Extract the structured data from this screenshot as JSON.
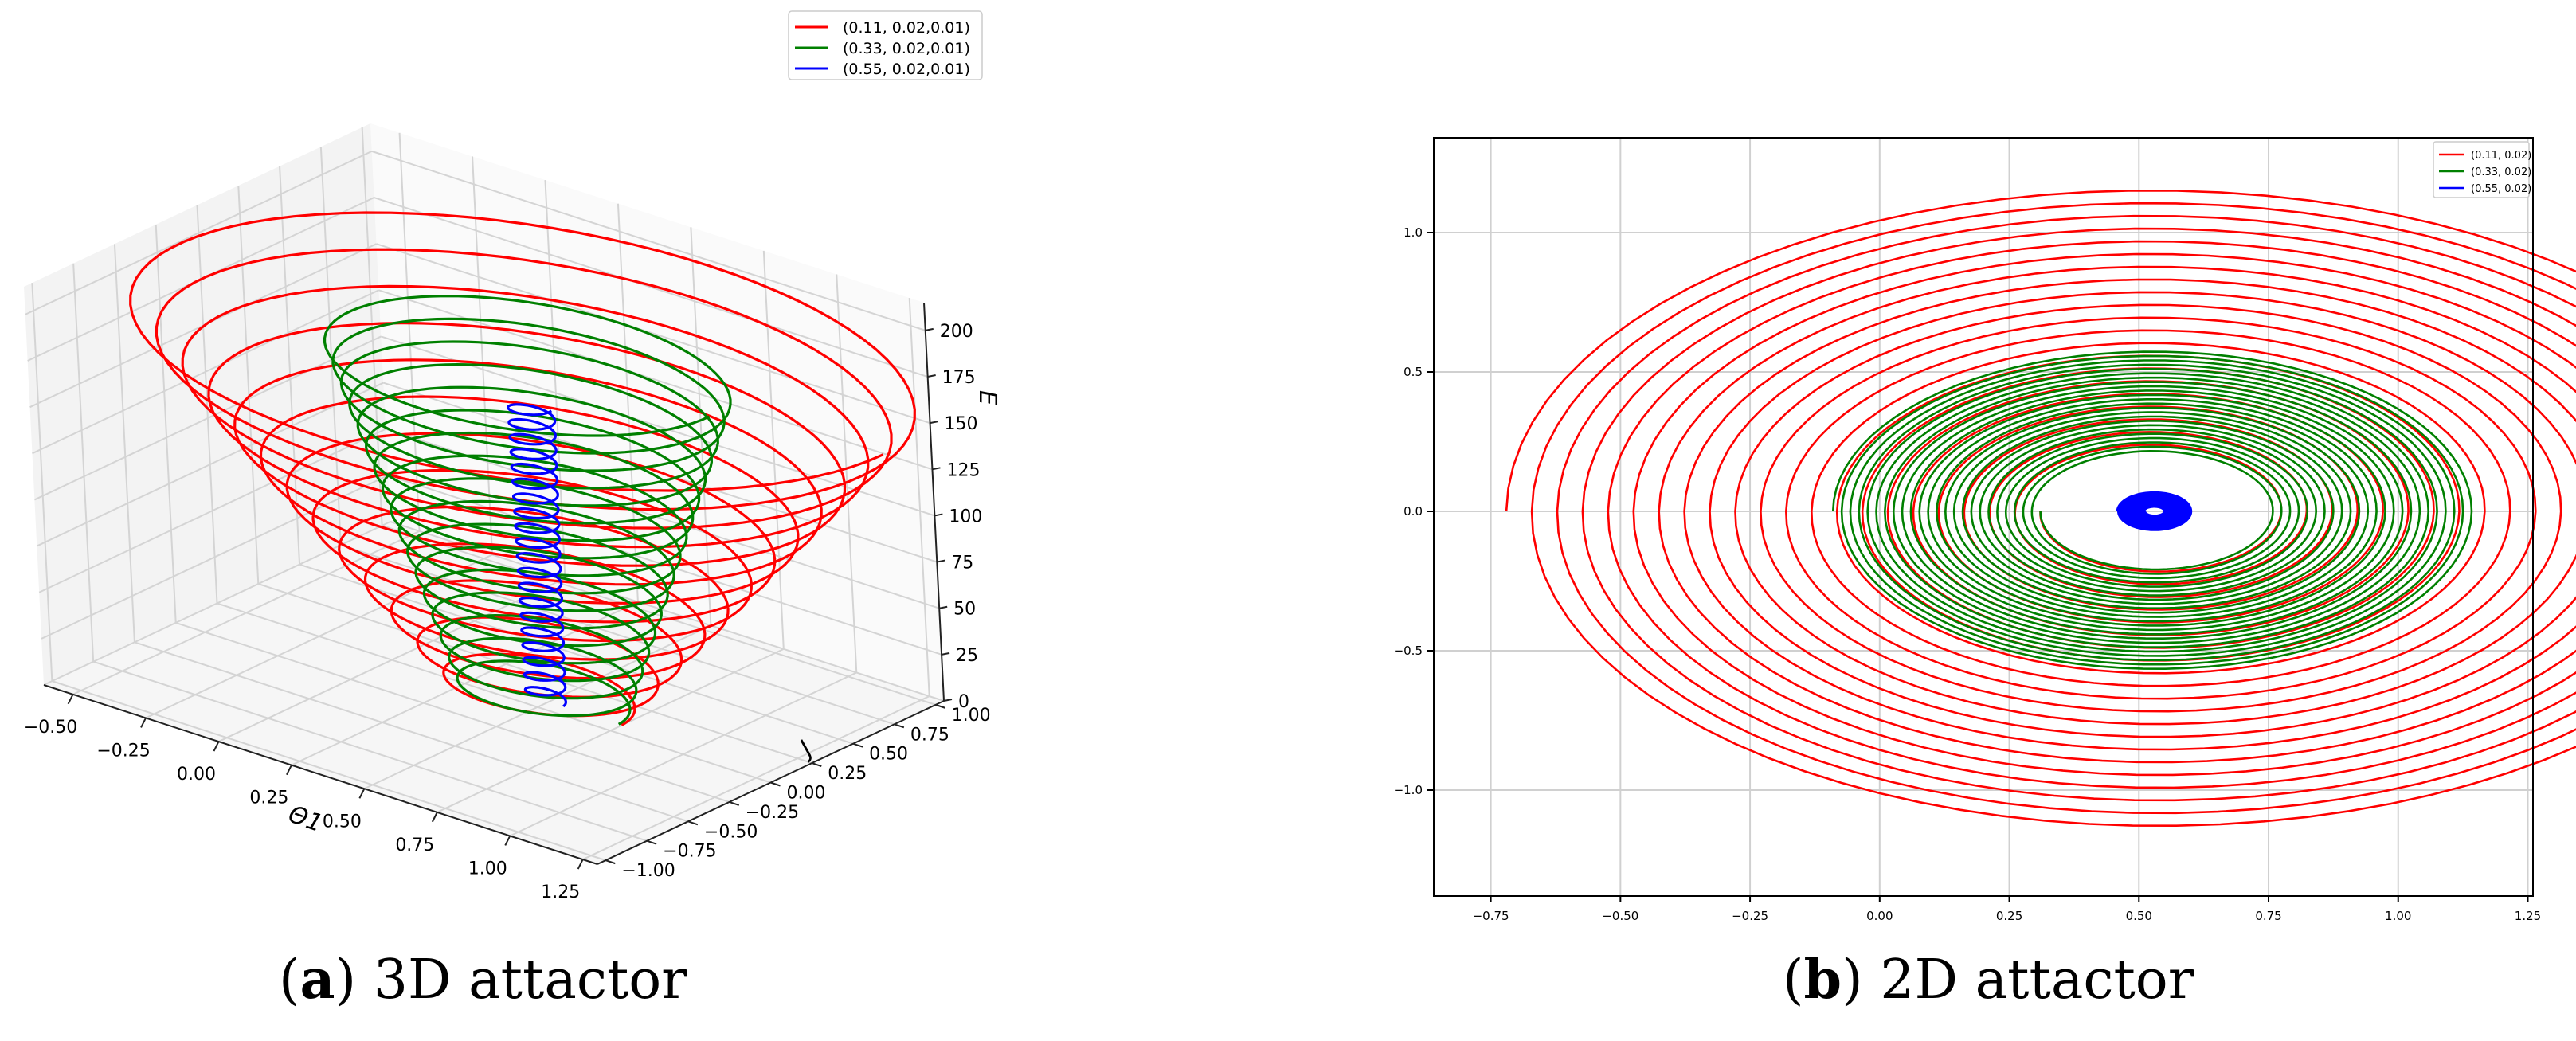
{
  "captions": {
    "a": {
      "letter": "a",
      "text": " 3D attactor"
    },
    "b": {
      "letter": "b",
      "text": " 2D attactor"
    }
  },
  "chart_data": [
    {
      "type": "line",
      "projection": "3d",
      "title": "",
      "xlabel": "Θ1",
      "ylabel": "J",
      "zlabel": "E",
      "x_ticks": [
        "−0.50",
        "−0.25",
        "0.00",
        "0.25",
        "0.50",
        "0.75",
        "1.00",
        "1.25"
      ],
      "y_ticks": [
        "−1.00",
        "−0.75",
        "−0.50",
        "−0.25",
        "0.00",
        "0.25",
        "0.50",
        "0.75",
        "1.00"
      ],
      "z_ticks": [
        "0",
        "25",
        "50",
        "75",
        "100",
        "125",
        "150",
        "175",
        "200"
      ],
      "xlim": [
        -0.6,
        1.3
      ],
      "ylim": [
        -1.05,
        1.05
      ],
      "zlim": [
        0,
        215
      ],
      "grid": true,
      "legend_position": "top-right",
      "series": [
        {
          "name": "(0.11, 0.02,0.01)",
          "color": "#ff0000",
          "center": [
            0.53,
            0.0
          ],
          "r_start": 0.26,
          "r_end": 1.22,
          "z_end": 200,
          "turns": 13
        },
        {
          "name": "(0.33, 0.02,0.01)",
          "color": "#008000",
          "center": [
            0.53,
            0.0
          ],
          "r_start": 0.25,
          "r_end": 0.62,
          "z_end": 190,
          "turns": 17
        },
        {
          "name": "(0.55, 0.02,0.01)",
          "color": "#0000ff",
          "center": [
            0.53,
            0.0
          ],
          "r_start": 0.06,
          "r_end": 0.07,
          "z_end": 165,
          "turns": 20
        }
      ]
    },
    {
      "type": "line",
      "title": "",
      "xlabel": "",
      "ylabel": "",
      "x_ticks": [
        "−0.75",
        "−0.50",
        "−0.25",
        "0.00",
        "0.25",
        "0.50",
        "0.75",
        "1.00",
        "1.25"
      ],
      "y_ticks": [
        "−1.0",
        "−0.5",
        "0.0",
        "0.5",
        "1.0"
      ],
      "xlim": [
        -0.86,
        1.26
      ],
      "ylim": [
        -1.38,
        1.34
      ],
      "grid": true,
      "legend_position": "top-right",
      "series": [
        {
          "name": "(0.11, 0.02)",
          "color": "#ff0000",
          "center": [
            0.53,
            0.0
          ],
          "r_start": 0.22,
          "r_end": 1.25,
          "turns": 21
        },
        {
          "name": "(0.33, 0.02)",
          "color": "#008000",
          "center": [
            0.53,
            0.0
          ],
          "r_start": 0.22,
          "r_end": 0.62,
          "turns": 24
        },
        {
          "name": "(0.55, 0.02)",
          "color": "#0000ff",
          "center": [
            0.53,
            0.0
          ],
          "r_start": 0.02,
          "r_end": 0.07,
          "turns": 25
        }
      ]
    }
  ]
}
